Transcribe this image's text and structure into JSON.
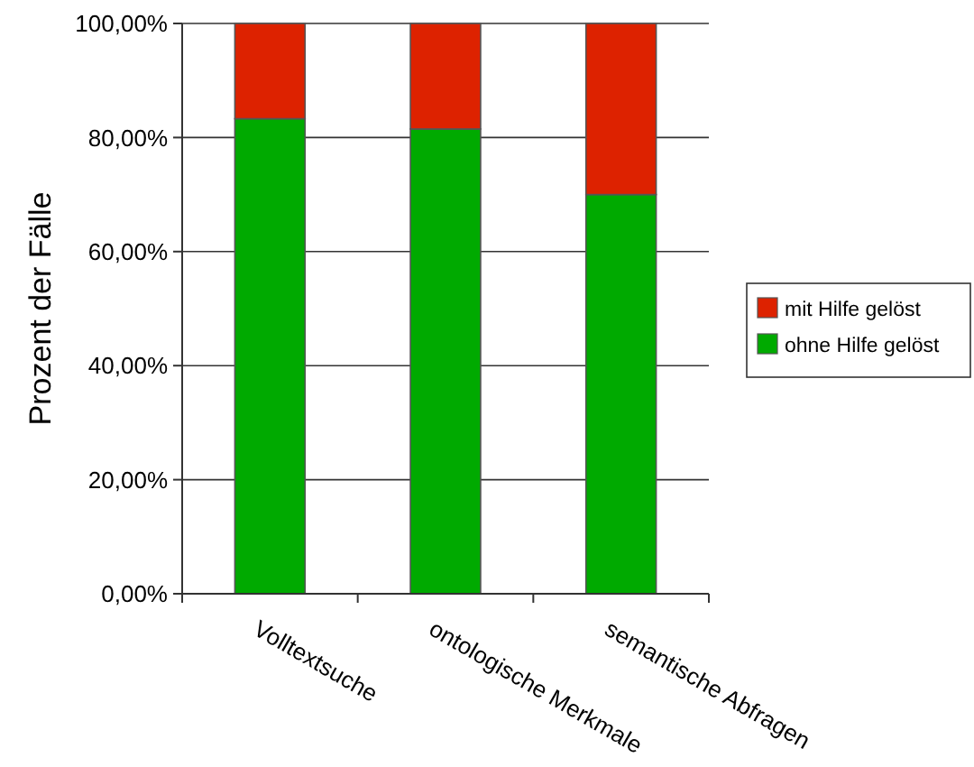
{
  "chart_data": {
    "type": "bar",
    "stacked": true,
    "ylabel": "Prozent der Fälle",
    "categories": [
      "Volltextsuche",
      "ontologische Merkmale",
      "semantische Abfragen"
    ],
    "series": [
      {
        "name": "ohne Hilfe gelöst",
        "color": "#00aa00",
        "values": [
          83.3,
          81.5,
          70
        ]
      },
      {
        "name": "mit Hilfe gelöst",
        "color": "#dd2200",
        "values": [
          16.7,
          18.5,
          30
        ]
      }
    ],
    "ylim": [
      0,
      100
    ],
    "yticks": [
      {
        "value": 0,
        "label": "0,00%"
      },
      {
        "value": 20,
        "label": "20,00%"
      },
      {
        "value": 40,
        "label": "40,00%"
      },
      {
        "value": 60,
        "label": "60,00%"
      },
      {
        "value": 80,
        "label": "80,00%"
      },
      {
        "value": 100,
        "label": "100,00%"
      }
    ],
    "grid": "y",
    "legend": "right"
  }
}
